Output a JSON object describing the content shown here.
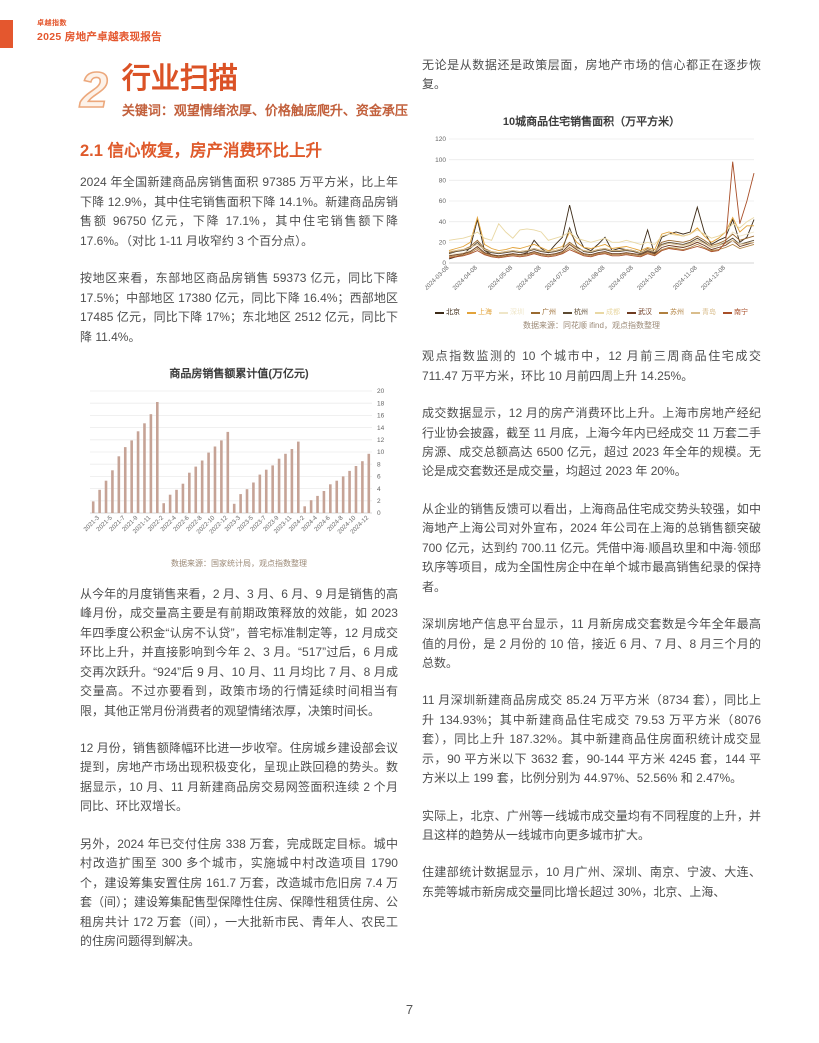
{
  "header": {
    "brand_small": "卓越指数",
    "brand_title": "2025 房地产卓越表现报告"
  },
  "section": {
    "number": "2",
    "title": "行业扫描",
    "keywords": "关键词：观望情绪浓厚、价格触底爬升、资金承压",
    "subsection": "2.1 信心恢复，房产消费环比上升"
  },
  "left_column": {
    "paragraphs": [
      "2024 年全国新建商品房销售面积 97385 万平方米，比上年下降 12.9%，其中住宅销售面积下降 14.1%。新建商品房销售额 96750 亿元，下降 17.1%，其中住宅销售额下降 17.6%。（对比 1-11 月收窄约 3 个百分点）。",
      "按地区来看，东部地区商品房销售 59373 亿元，同比下降 17.5%；中部地区 17380 亿元，同比下降 16.4%；西部地区 17485 亿元，同比下降 17%；东北地区 2512 亿元，同比下降 11.4%。",
      "从今年的月度销售来看，2 月、3 月、6 月、9 月是销售的高峰月份，成交量高主要是有前期政策释放的效能，如 2023 年四季度公积金“认房不认贷”，普宅标准制定等，12 月成交环比上升，并直接影响到今年 2、3 月。“517”过后，6 月成交再次跃升。“924”后 9 月、10 月、11 月均比 7 月、8 月成交量高。不过亦要看到，政策市场的行情延续时间相当有限，其他正常月份消费者的观望情绪浓厚，决策时间长。",
      "12 月份，销售额降幅环比进一步收窄。住房城乡建设部会议提到，房地产市场出现积极变化，呈现止跌回稳的势头。数据显示，10 月、11 月新建商品房交易网签面积连续 2 个月同比、环比双增长。",
      "另外，2024 年已交付住房 338 万套，完成既定目标。城中村改造扩围至 300 多个城市，实施城中村改造项目 1790 个，建设筹集安置住房 161.7 万套，改造城市危旧房 7.4 万套（间）；建设筹集配售型保障性住房、保障性租赁住房、公租房共计 172 万套（间），一大批新市民、青年人、农民工的住房问题得到解决。"
    ]
  },
  "right_column": {
    "paragraphs": [
      "无论是从数据还是政策层面，房地产市场的信心都正在逐步恢复。",
      "观点指数监测的 10 个城市中，12 月前三周商品住宅成交 711.47 万平方米，环比 10 月前四周上升 14.25%。",
      "成交数据显示，12 月的房产消费环比上升。上海市房地产经纪行业协会披露，截至 11 月底，上海今年内已经成交 11 万套二手房源、成交总额高达 6500 亿元，超过 2023 年全年的规模。无论是成交套数还是成交量，均超过 2023 年 20%。",
      "从企业的销售反馈可以看出，上海商品住宅成交势头较强，如中海地产上海公司对外宣布，2024 年公司在上海的总销售额突破 700 亿元，达到约 700.11 亿元。凭借中海·顺昌玖里和中海·领邸玖序等项目，成为全国性房企中在单个城市最高销售纪录的保持者。",
      "深圳房地产信息平台显示，11 月新房成交套数是今年全年最高值的月份，是 2 月份的 10 倍，接近 6 月、7 月、8 月三个月的总数。",
      "11 月深圳新建商品房成交 85.24 万平方米（8734 套），同比上升 134.93%；其中新建商品住宅成交 79.53 万平方米（8076 套），同比上升 187.32%。其中新建商品住房面积统计成交显示，90 平方米以下 3632 套，90-144 平方米 4245 套，144 平方米以上 199 套，比例分别为 44.97%、52.56% 和 2.47%。",
      "实际上，北京、广州等一线城市成交量均有不同程度的上升，并且这样的趋势从一线城市向更多城市扩大。",
      "住建部统计数据显示，10 月广州、深圳、南京、宁波、大连、东莞等城市新房成交量同比增长超过 30%，北京、上海、"
    ]
  },
  "footer": {
    "page_number": "7"
  },
  "colors": {
    "accent": "#E4572E",
    "section_title": "#DB5226",
    "keywords": "#C2603C",
    "body_text": "#4E4E4E"
  },
  "chart_data": [
    {
      "type": "line",
      "title": "10城商品住宅销售面积（万平方米）",
      "source": "数据来源：同花顺 ifind，观点指数整理",
      "ylabel": "",
      "ylim": [
        0,
        120
      ],
      "yticks": [
        0,
        20,
        40,
        60,
        80,
        100,
        120
      ],
      "grid": true,
      "legend_position": "bottom",
      "x_tick_labels": [
        "2024-03-08",
        "2024-04-08",
        "2024-05-08",
        "2024-06-08",
        "2024-07-08",
        "2024-08-08",
        "2024-09-08",
        "2024-10-08",
        "2024-11-08",
        "2024-12-08"
      ],
      "x_tick_indices": [
        0,
        4,
        9,
        13,
        17,
        22,
        26,
        30,
        35,
        39
      ],
      "series": [
        {
          "name": "北京",
          "color": "#3C2A17",
          "values": [
            4,
            6,
            8,
            15,
            42,
            12,
            8,
            6,
            7,
            9,
            8,
            10,
            22,
            14,
            10,
            18,
            25,
            56,
            28,
            15,
            12,
            18,
            25,
            12,
            14,
            13,
            12,
            10,
            32,
            8,
            25,
            28,
            30,
            28,
            30,
            54,
            30,
            18,
            22,
            25,
            42,
            20,
            25,
            42
          ]
        },
        {
          "name": "上海",
          "color": "#E2A33B",
          "values": [
            12,
            14,
            16,
            20,
            44,
            18,
            14,
            12,
            13,
            15,
            14,
            16,
            18,
            15,
            12,
            14,
            16,
            30,
            20,
            15,
            14,
            16,
            18,
            14,
            15,
            16,
            14,
            12,
            15,
            13,
            28,
            30,
            28,
            26,
            28,
            34,
            26,
            20,
            24,
            30,
            44,
            30,
            36,
            36
          ]
        },
        {
          "name": "深圳",
          "color": "#EFE6C8",
          "values": [
            8,
            9,
            10,
            12,
            15,
            10,
            8,
            7,
            8,
            9,
            8,
            9,
            10,
            9,
            8,
            9,
            10,
            16,
            12,
            9,
            8,
            9,
            10,
            9,
            9,
            10,
            9,
            8,
            10,
            9,
            12,
            14,
            15,
            16,
            18,
            22,
            20,
            16,
            18,
            22,
            30,
            26,
            28,
            30
          ]
        },
        {
          "name": "广州",
          "color": "#9A6A30",
          "values": [
            10,
            12,
            13,
            16,
            22,
            14,
            11,
            10,
            11,
            12,
            11,
            12,
            14,
            12,
            11,
            12,
            14,
            20,
            15,
            12,
            11,
            13,
            14,
            12,
            12,
            13,
            12,
            10,
            14,
            11,
            20,
            22,
            21,
            20,
            22,
            26,
            22,
            17,
            19,
            22,
            28,
            22,
            24,
            26
          ]
        },
        {
          "name": "杭州",
          "color": "#5C4A32",
          "values": [
            9,
            11,
            12,
            14,
            20,
            12,
            10,
            9,
            10,
            11,
            10,
            11,
            13,
            11,
            10,
            11,
            13,
            34,
            16,
            11,
            10,
            12,
            13,
            11,
            11,
            12,
            11,
            9,
            12,
            10,
            18,
            20,
            19,
            18,
            20,
            24,
            20,
            15,
            17,
            20,
            24,
            18,
            20,
            22
          ]
        },
        {
          "name": "成都",
          "color": "#E9D8A4",
          "values": [
            22,
            23,
            24,
            26,
            30,
            24,
            22,
            38,
            30,
            24,
            32,
            33,
            32,
            30,
            22,
            24,
            26,
            30,
            24,
            22,
            20,
            22,
            24,
            20,
            20,
            22,
            20,
            18,
            20,
            18,
            26,
            28,
            27,
            26,
            28,
            32,
            28,
            24,
            26,
            30,
            38,
            34,
            40,
            44
          ]
        },
        {
          "name": "武汉",
          "color": "#6E3B20",
          "values": [
            7,
            8,
            9,
            11,
            16,
            10,
            8,
            7,
            8,
            9,
            8,
            9,
            11,
            9,
            8,
            9,
            11,
            18,
            13,
            9,
            8,
            10,
            11,
            9,
            9,
            10,
            9,
            8,
            11,
            9,
            15,
            17,
            16,
            15,
            17,
            20,
            17,
            13,
            15,
            17,
            22,
            16,
            18,
            20
          ]
        },
        {
          "name": "苏州",
          "color": "#B0803F",
          "values": [
            6,
            7,
            8,
            10,
            14,
            9,
            7,
            6,
            7,
            8,
            7,
            8,
            10,
            8,
            7,
            8,
            10,
            15,
            11,
            8,
            7,
            9,
            10,
            8,
            8,
            9,
            8,
            7,
            10,
            8,
            13,
            15,
            14,
            13,
            15,
            18,
            15,
            12,
            13,
            15,
            18,
            14,
            16,
            18
          ]
        },
        {
          "name": "青岛",
          "color": "#D9BD8C",
          "values": [
            11,
            12,
            13,
            15,
            18,
            13,
            11,
            10,
            11,
            12,
            11,
            12,
            14,
            12,
            11,
            12,
            14,
            19,
            14,
            12,
            11,
            13,
            14,
            12,
            12,
            13,
            12,
            10,
            13,
            11,
            17,
            19,
            18,
            17,
            19,
            22,
            19,
            15,
            17,
            19,
            22,
            18,
            19,
            20
          ]
        },
        {
          "name": "南宁",
          "color": "#A84E28",
          "values": [
            5,
            6,
            7,
            9,
            12,
            8,
            6,
            5,
            6,
            7,
            6,
            7,
            9,
            7,
            6,
            7,
            9,
            13,
            10,
            7,
            6,
            8,
            9,
            7,
            7,
            8,
            7,
            6,
            9,
            7,
            12,
            14,
            13,
            12,
            14,
            16,
            14,
            11,
            12,
            20,
            98,
            38,
            60,
            87
          ]
        }
      ]
    },
    {
      "type": "bar",
      "title": "商品房销售额累计值(万亿元)",
      "source": "数据来源：国家统计局，观点指数整理",
      "ylabel": "",
      "ylim": [
        0,
        20
      ],
      "yticks": [
        0,
        2,
        4,
        6,
        8,
        10,
        12,
        14,
        16,
        18,
        20
      ],
      "y_axis_side": "right",
      "grid": true,
      "bar_color": "#C6A396",
      "label_shown_when_index_odd": true,
      "categories": [
        "2021-2",
        "2021-3",
        "2021-4",
        "2021-5",
        "2021-6",
        "2021-7",
        "2021-8",
        "2021-9",
        "2021-10",
        "2021-11",
        "2021-12",
        "2022-2",
        "2022-3",
        "2022-4",
        "2022-5",
        "2022-6",
        "2022-7",
        "2022-8",
        "2022-9",
        "2022-10",
        "2022-11",
        "2022-12",
        "2023-2",
        "2023-3",
        "2023-4",
        "2023-5",
        "2023-6",
        "2023-7",
        "2023-8",
        "2023-9",
        "2023-10",
        "2023-11",
        "2023-12",
        "2024-2",
        "2024-3",
        "2024-4",
        "2024-5",
        "2024-6",
        "2024-7",
        "2024-8",
        "2024-9",
        "2024-10",
        "2024-11",
        "2024-12"
      ],
      "values": [
        1.9,
        3.8,
        5.3,
        7.0,
        9.3,
        10.8,
        11.9,
        13.4,
        14.7,
        16.2,
        18.2,
        1.6,
        3.0,
        3.8,
        4.8,
        6.6,
        7.6,
        8.6,
        9.9,
        10.9,
        11.9,
        13.3,
        1.5,
        3.1,
        3.9,
        5.0,
        6.3,
        7.1,
        7.8,
        8.9,
        9.7,
        10.5,
        11.7,
        1.1,
        2.1,
        2.8,
        3.6,
        4.7,
        5.3,
        6.0,
        6.9,
        7.7,
        8.5,
        9.7
      ]
    }
  ]
}
